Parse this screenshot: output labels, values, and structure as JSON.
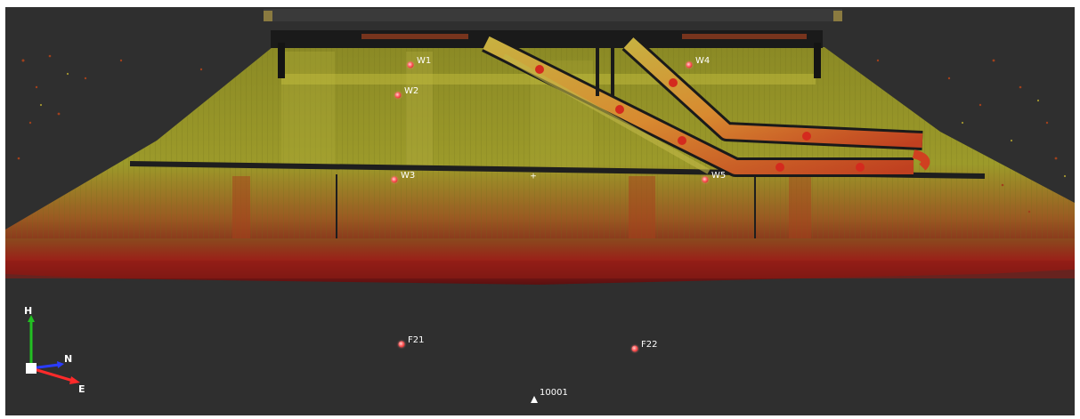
{
  "viewer": {
    "background_color": "#2f2f2f",
    "point_cloud_colors": [
      "#7a7a1c",
      "#a0a02a",
      "#b84020",
      "#8a1a18"
    ],
    "markers": {
      "wall": [
        {
          "id": "W1",
          "label": "W1"
        },
        {
          "id": "W2",
          "label": "W2"
        },
        {
          "id": "W3",
          "label": "W3"
        },
        {
          "id": "W4",
          "label": "W4"
        },
        {
          "id": "W5",
          "label": "W5"
        }
      ],
      "floor": [
        {
          "id": "F21",
          "label": "F21"
        },
        {
          "id": "F22",
          "label": "F22"
        }
      ]
    },
    "station": {
      "label": "10001",
      "icon": "survey-station-icon"
    },
    "center_marker": {
      "glyph": "+"
    },
    "axis_indicator": {
      "labels": {
        "up": "H",
        "north": "N",
        "east": "E"
      },
      "colors": {
        "up": "#22c022",
        "north": "#2a3cff",
        "east": "#ff2a2a"
      }
    }
  }
}
